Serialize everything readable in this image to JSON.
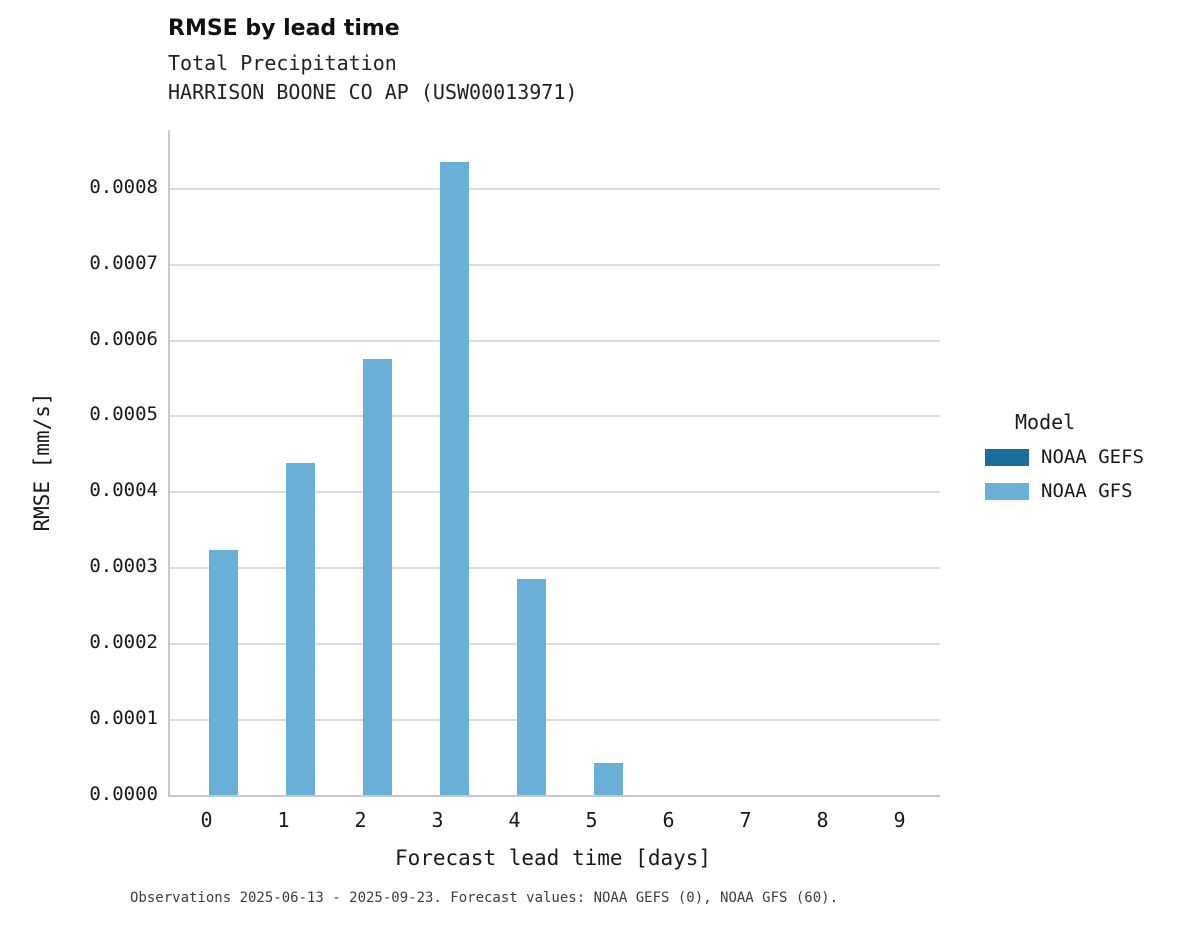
{
  "chart_data": {
    "type": "bar",
    "title": "RMSE by lead time",
    "subtitle_line1": "Total Precipitation",
    "subtitle_line2": "HARRISON BOONE CO AP (USW00013971)",
    "xlabel": "Forecast lead time [days]",
    "ylabel": "RMSE [mm/s]",
    "categories": [
      "0",
      "1",
      "2",
      "3",
      "4",
      "5",
      "6",
      "7",
      "8",
      "9"
    ],
    "series": [
      {
        "name": "NOAA GEFS",
        "color": "#1a6e9c",
        "values": [
          0,
          0,
          0,
          0,
          0,
          0,
          0,
          0,
          0,
          0
        ]
      },
      {
        "name": "NOAA GFS",
        "color": "#69afd7",
        "values": [
          0.000323,
          0.000437,
          0.000575,
          0.000834,
          0.000285,
          4.2e-05,
          0,
          0,
          0,
          0
        ]
      }
    ],
    "ylim": [
      0,
      0.000876
    ],
    "yticks": [
      "0.0000",
      "0.0001",
      "0.0002",
      "0.0003",
      "0.0004",
      "0.0005",
      "0.0006",
      "0.0007",
      "0.0008"
    ],
    "grid": "horizontal",
    "legend_title": "Model",
    "legend_position": "right",
    "footnote": "Observations 2025-06-13 - 2025-09-23. Forecast values: NOAA GEFS (0), NOAA GFS (60)."
  },
  "colors": {
    "grid": "#dcdcdc",
    "axis": "#c6cacc",
    "text": "#1a1a1a"
  }
}
